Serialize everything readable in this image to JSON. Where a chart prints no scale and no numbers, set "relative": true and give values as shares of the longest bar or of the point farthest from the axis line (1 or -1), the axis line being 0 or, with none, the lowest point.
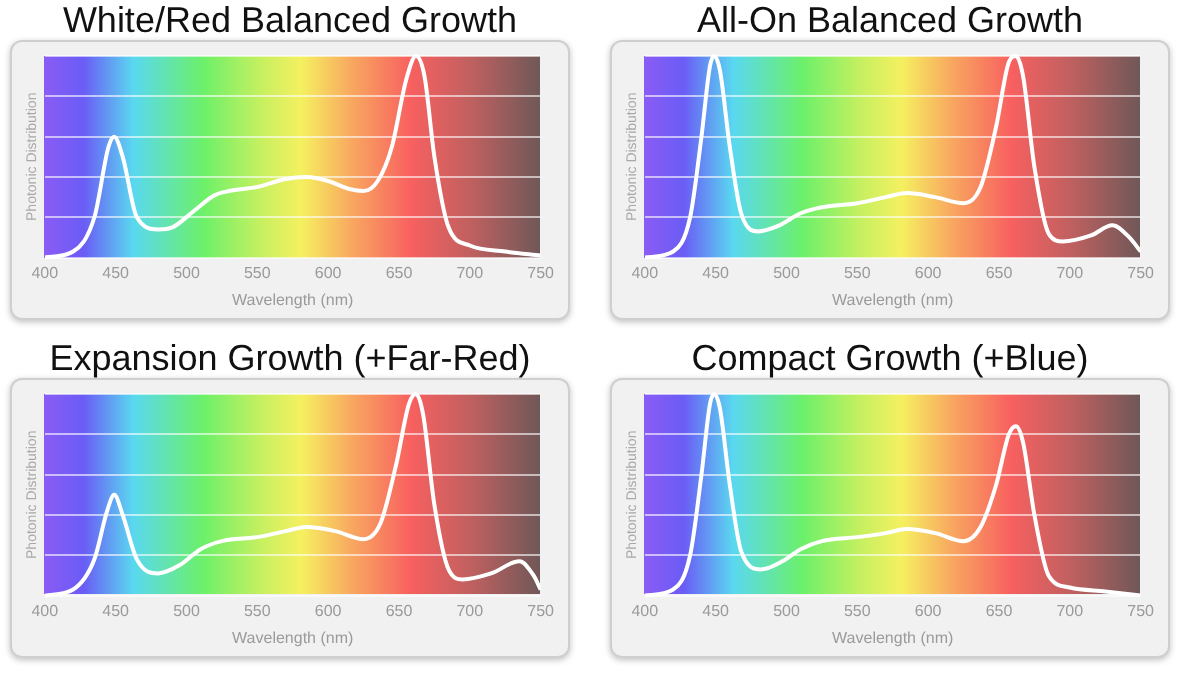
{
  "chart_data": [
    {
      "type": "line",
      "title": "White/Red Balanced Growth",
      "xlabel": "Wavelength (nm)",
      "ylabel": "Photonic Distribution",
      "relative": true,
      "grid": "y",
      "legend": false,
      "marker": "none",
      "xlim": [
        400,
        750
      ],
      "xticks": [
        400,
        450,
        500,
        550,
        600,
        650,
        700,
        750
      ],
      "series": [
        {
          "color": "#ffffff",
          "x": [
            400,
            420,
            435,
            445,
            449,
            455,
            465,
            480,
            490,
            505,
            520,
            530,
            550,
            570,
            585,
            600,
            615,
            625,
            635,
            645,
            655,
            662,
            668,
            675,
            685,
            700,
            725,
            750
          ],
          "values": [
            0,
            0.03,
            0.2,
            0.55,
            0.6,
            0.5,
            0.2,
            0.14,
            0.15,
            0.23,
            0.31,
            0.33,
            0.35,
            0.39,
            0.4,
            0.38,
            0.34,
            0.33,
            0.38,
            0.55,
            0.88,
            1,
            0.9,
            0.5,
            0.15,
            0.06,
            0.03,
            0.01
          ]
        }
      ]
    },
    {
      "type": "line",
      "title": "All-On Balanced Growth",
      "xlabel": "Wavelength (nm)",
      "ylabel": "Photonic Distribution",
      "relative": true,
      "grid": "y",
      "legend": false,
      "marker": "none",
      "xlim": [
        400,
        750
      ],
      "xticks": [
        400,
        450,
        500,
        550,
        600,
        650,
        700,
        750
      ],
      "series": [
        {
          "color": "#ffffff",
          "x": [
            400,
            420,
            432,
            440,
            446,
            449,
            453,
            460,
            468,
            480,
            495,
            510,
            525,
            550,
            570,
            585,
            605,
            625,
            637,
            648,
            657,
            662,
            667,
            675,
            685,
            695,
            715,
            730,
            742,
            750
          ],
          "values": [
            0,
            0.03,
            0.2,
            0.6,
            0.95,
            1,
            0.93,
            0.55,
            0.22,
            0.13,
            0.16,
            0.22,
            0.25,
            0.27,
            0.3,
            0.32,
            0.3,
            0.27,
            0.35,
            0.65,
            0.97,
            1,
            0.9,
            0.45,
            0.12,
            0.08,
            0.11,
            0.16,
            0.1,
            0.03
          ]
        }
      ]
    },
    {
      "type": "line",
      "title": "Expansion Growth (+Far-Red)",
      "xlabel": "Wavelength (nm)",
      "ylabel": "Photonic Distribution",
      "relative": true,
      "grid": "y",
      "legend": false,
      "marker": "none",
      "xlim": [
        400,
        750
      ],
      "xticks": [
        400,
        450,
        500,
        550,
        600,
        650,
        700,
        750
      ],
      "series": [
        {
          "color": "#ffffff",
          "x": [
            400,
            420,
            435,
            444,
            449,
            455,
            465,
            480,
            495,
            510,
            525,
            550,
            570,
            585,
            605,
            625,
            637,
            648,
            657,
            662,
            667,
            675,
            685,
            695,
            715,
            735,
            745,
            750
          ],
          "values": [
            0,
            0.03,
            0.18,
            0.42,
            0.5,
            0.4,
            0.18,
            0.11,
            0.15,
            0.23,
            0.27,
            0.29,
            0.32,
            0.34,
            0.32,
            0.28,
            0.36,
            0.65,
            0.95,
            1,
            0.9,
            0.45,
            0.13,
            0.08,
            0.11,
            0.17,
            0.1,
            0.03
          ]
        }
      ]
    },
    {
      "type": "line",
      "title": "Compact Growth (+Blue)",
      "xlabel": "Wavelength (nm)",
      "ylabel": "Photonic Distribution",
      "relative": true,
      "grid": "y",
      "legend": false,
      "marker": "none",
      "xlim": [
        400,
        750
      ],
      "xticks": [
        400,
        450,
        500,
        550,
        600,
        650,
        700,
        750
      ],
      "series": [
        {
          "color": "#ffffff",
          "x": [
            400,
            420,
            432,
            440,
            446,
            449,
            453,
            460,
            468,
            482,
            497,
            510,
            525,
            550,
            570,
            585,
            605,
            625,
            637,
            648,
            657,
            662,
            667,
            675,
            685,
            700,
            725,
            750
          ],
          "values": [
            0,
            0.03,
            0.2,
            0.6,
            0.95,
            1,
            0.93,
            0.55,
            0.22,
            0.13,
            0.17,
            0.23,
            0.27,
            0.29,
            0.31,
            0.33,
            0.31,
            0.27,
            0.34,
            0.55,
            0.8,
            0.84,
            0.76,
            0.4,
            0.1,
            0.04,
            0.02,
            0
          ]
        }
      ]
    }
  ]
}
